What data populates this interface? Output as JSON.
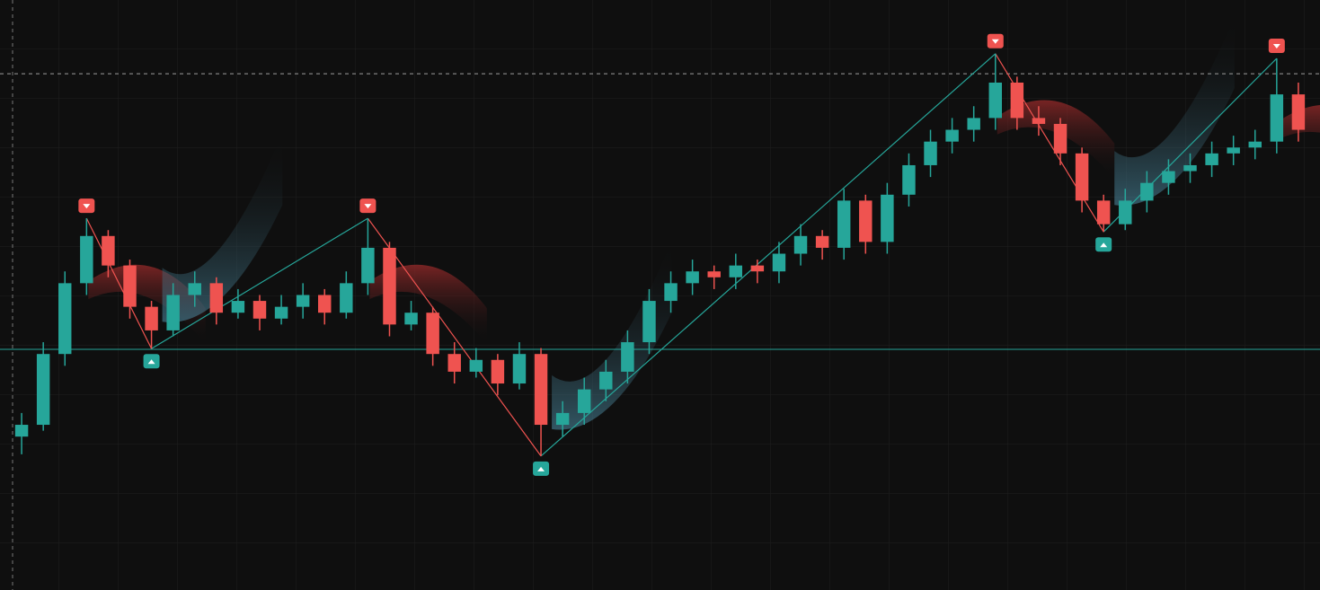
{
  "chart_data": {
    "type": "candlestick",
    "xlim": [
      -1,
      60
    ],
    "ylim": [
      0,
      100
    ],
    "grid": true,
    "up_color": "#26a69a",
    "down_color": "#ef5350",
    "open": [
      26,
      28,
      40,
      52,
      60,
      55,
      48,
      44,
      50,
      52,
      47,
      49,
      46,
      48,
      50,
      47,
      52,
      58,
      45,
      47,
      40,
      37,
      39,
      35,
      40,
      28,
      30,
      34,
      37,
      42,
      49,
      52,
      54,
      53,
      55,
      54,
      57,
      60,
      58,
      66,
      59,
      67,
      72,
      76,
      78,
      80,
      86,
      80,
      79,
      74,
      66,
      62,
      66,
      69,
      71,
      72,
      74,
      75,
      76,
      84
    ],
    "high": [
      30,
      42,
      54,
      63,
      61,
      56,
      49,
      52,
      54,
      53,
      51,
      50,
      50,
      52,
      51,
      54,
      63,
      59,
      49,
      48,
      42,
      41,
      40,
      42,
      41,
      32,
      36,
      39,
      44,
      51,
      54,
      56,
      55,
      57,
      56,
      59,
      62,
      61,
      68,
      67,
      69,
      74,
      78,
      80,
      82,
      90.9,
      87,
      82,
      80,
      75,
      67,
      68,
      71,
      73,
      74,
      76,
      77,
      78,
      90.1,
      86
    ],
    "low": [
      23,
      27,
      38,
      50,
      53,
      46,
      40.9,
      43,
      48,
      45,
      46,
      44,
      45,
      46,
      45,
      46,
      50,
      43,
      44,
      38,
      35,
      36,
      33,
      34,
      22.7,
      26,
      28,
      32,
      35,
      40,
      47,
      50,
      51,
      51,
      52,
      52,
      55,
      56,
      56,
      57,
      57,
      65,
      70,
      74,
      76,
      78,
      78,
      77,
      72,
      64,
      60.7,
      61,
      64,
      67,
      69,
      70,
      72,
      73,
      74,
      76
    ],
    "close": [
      28,
      40,
      52,
      60,
      55,
      48,
      44,
      50,
      52,
      47,
      49,
      46,
      48,
      50,
      47,
      52,
      58,
      45,
      47,
      40,
      37,
      39,
      35,
      40,
      28,
      30,
      34,
      37,
      42,
      49,
      52,
      54,
      53,
      55,
      54,
      57,
      60,
      58,
      66,
      59,
      67,
      72,
      76,
      78,
      80,
      86,
      80,
      79,
      74,
      66,
      62,
      66,
      69,
      71,
      72,
      74,
      75,
      76,
      84,
      78
    ],
    "pivots": [
      {
        "index": 3,
        "price": 63,
        "kind": "high"
      },
      {
        "index": 6,
        "price": 40.9,
        "kind": "low"
      },
      {
        "index": 16,
        "price": 63,
        "kind": "high"
      },
      {
        "index": 24,
        "price": 22.7,
        "kind": "low"
      },
      {
        "index": 45,
        "price": 90.9,
        "kind": "high"
      },
      {
        "index": 50,
        "price": 60.7,
        "kind": "low"
      },
      {
        "index": 58,
        "price": 90.1,
        "kind": "high"
      }
    ],
    "levels": [
      {
        "price": 40.8,
        "style": "solid",
        "color": "#26a69a"
      },
      {
        "price": 87.5,
        "style": "dashed",
        "color": "#9e9e9e"
      }
    ]
  }
}
